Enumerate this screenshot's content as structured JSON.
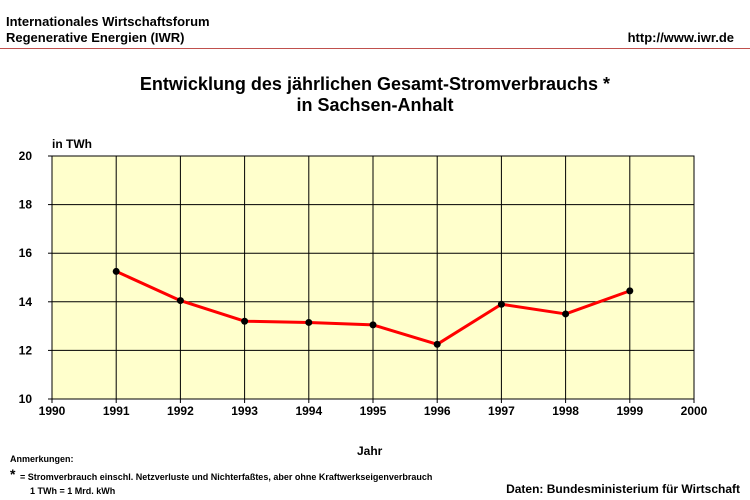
{
  "header": {
    "org_line1": "Internationales Wirtschaftsforum",
    "org_line2": "Regenerative Energien (IWR)",
    "url": "http://www.iwr.de"
  },
  "footer": {
    "notes_title": "Anmerkungen:",
    "notes_star": "*",
    "notes_line1": "= Stromverbrauch einschl. Netzverluste und Nichterfaßtes, aber ohne Kraftwerkseigenverbrauch",
    "notes_line2": "1 TWh = 1 Mrd. kWh",
    "source": "Daten: Bundesministerium für Wirtschaft"
  },
  "colors": {
    "plot_bg": "#ffffcc",
    "line": "#ff0000",
    "marker": "#000000",
    "grid": "#000000"
  },
  "chart_data": {
    "type": "line",
    "title_line1": "Entwicklung des jährlichen Gesamt-Stromverbrauchs *",
    "title_line2": "in Sachsen-Anhalt",
    "xlabel": "Jahr",
    "ylabel": "in TWh",
    "xlim": [
      1990,
      2000
    ],
    "ylim": [
      10,
      20
    ],
    "x_ticks": [
      "1990",
      "1991",
      "1992",
      "1993",
      "1994",
      "1995",
      "1996",
      "1997",
      "1998",
      "1999",
      "2000"
    ],
    "y_ticks": [
      "10",
      "12",
      "14",
      "16",
      "18",
      "20"
    ],
    "grid": true,
    "x": [
      1991,
      1992,
      1993,
      1994,
      1995,
      1996,
      1997,
      1998,
      1999
    ],
    "values": [
      15.25,
      14.05,
      13.2,
      13.15,
      13.05,
      12.25,
      13.9,
      13.5,
      14.45
    ]
  }
}
